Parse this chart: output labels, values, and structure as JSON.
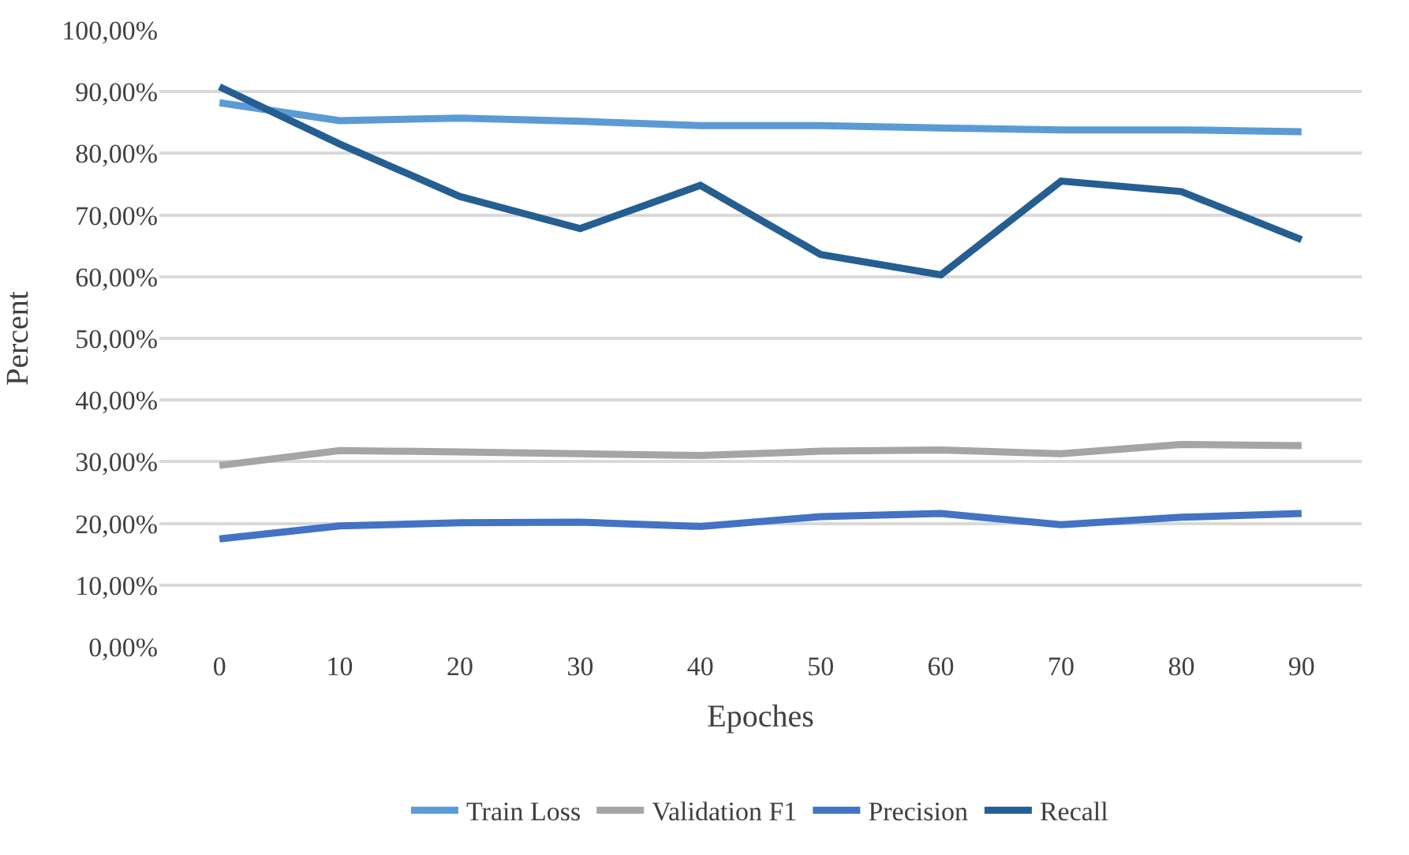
{
  "chart_data": {
    "type": "line",
    "xlabel": "Epoches",
    "ylabel": "Percent",
    "categories": [
      "0",
      "10",
      "20",
      "30",
      "40",
      "50",
      "60",
      "70",
      "80",
      "90"
    ],
    "series": [
      {
        "name": "Train Loss",
        "color": "#5b9bd5",
        "values": [
          88.2,
          85.3,
          85.7,
          85.2,
          84.5,
          84.5,
          84.1,
          83.8,
          83.8,
          83.5
        ]
      },
      {
        "name": "Validation F1",
        "color": "#a5a5a5",
        "values": [
          29.4,
          31.8,
          31.6,
          31.3,
          31.0,
          31.7,
          31.9,
          31.3,
          32.8,
          32.6
        ]
      },
      {
        "name": "Precision",
        "color": "#4472c4",
        "values": [
          17.5,
          19.6,
          20.1,
          20.2,
          19.5,
          21.1,
          21.6,
          19.8,
          21.0,
          21.6
        ]
      },
      {
        "name": "Recall",
        "color": "#255e91",
        "values": [
          90.8,
          81.5,
          73.0,
          67.8,
          74.8,
          63.6,
          60.3,
          75.5,
          73.8,
          66.0
        ]
      }
    ],
    "ylim": [
      0,
      100
    ],
    "yticks": [
      {
        "value": 0,
        "label": "0,00%"
      },
      {
        "value": 10,
        "label": "10,00%"
      },
      {
        "value": 20,
        "label": "20,00%"
      },
      {
        "value": 30,
        "label": "30,00%"
      },
      {
        "value": 40,
        "label": "40,00%"
      },
      {
        "value": 50,
        "label": "50,00%"
      },
      {
        "value": 60,
        "label": "60,00%"
      },
      {
        "value": 70,
        "label": "70,00%"
      },
      {
        "value": 80,
        "label": "80,00%"
      },
      {
        "value": 90,
        "label": "90,00%"
      },
      {
        "value": 100,
        "label": "100,00%"
      }
    ],
    "grid": "y",
    "legend": "bottom",
    "marker": "none",
    "line_style": "solid"
  }
}
